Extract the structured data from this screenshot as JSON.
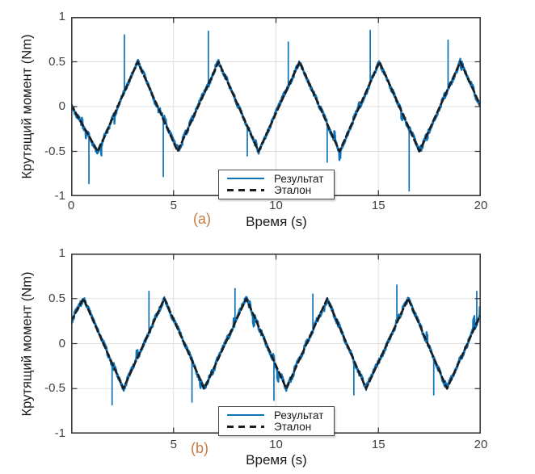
{
  "figure": {
    "background": "#ffffff"
  },
  "colors": {
    "result_line": "#0f73b8",
    "reference_line": "#1c1c1c",
    "grid_line": "#e0e0e0",
    "axis_box": "#3a3a3a",
    "tick_label": "#3f3f3f",
    "axis_label": "#1a1a1a",
    "sublabel": "#c77c42",
    "legend_border": "#4a4a4a",
    "legend_background": "#ffffff"
  },
  "chart_data": [
    {
      "id": "a",
      "type": "line",
      "sublabel": "(a)",
      "xlabel": "Время (s)",
      "ylabel": "Крутящий момент (Nm)",
      "xlim": [
        0,
        20
      ],
      "ylim": [
        -1,
        1
      ],
      "xticks": [
        0,
        5,
        10,
        15,
        20
      ],
      "xtick_labels": [
        "0",
        "5",
        "10",
        "15",
        "20"
      ],
      "yticks": [
        1,
        0.5,
        0,
        -0.5,
        -1
      ],
      "ytick_labels": [
        "1",
        "0.5",
        "0",
        "-0.5",
        "-1"
      ],
      "grid": true,
      "legend": {
        "position": "south-center",
        "entries": [
          {
            "label": "Результат",
            "style": "solid",
            "color": "#0f73b8"
          },
          {
            "label": "Эталон",
            "style": "dashed",
            "color": "#1c1c1c"
          }
        ]
      },
      "series": [
        {
          "name": "Результат",
          "style": "solid",
          "color": "#0f73b8",
          "definition": "reference_plus_noise",
          "noise": {
            "seed": 11,
            "dt": 0.008,
            "uniform": 0.025,
            "step": 0.022,
            "step_period": 0.16,
            "bump_prob": 0.006,
            "bump_max": 0.05
          },
          "spikes": [
            [
              0.87,
              -0.86
            ],
            [
              2.6,
              0.8
            ],
            [
              4.5,
              -0.78
            ],
            [
              6.7,
              0.84
            ],
            [
              8.6,
              -0.55
            ],
            [
              10.6,
              0.72
            ],
            [
              12.5,
              -0.62
            ],
            [
              14.6,
              0.85
            ],
            [
              16.5,
              -0.94
            ],
            [
              18.4,
              0.74
            ]
          ]
        },
        {
          "name": "Эталон",
          "style": "dashed",
          "color": "#1c1c1c",
          "vertices": [
            [
              0,
              0.02
            ],
            [
              1.3,
              -0.5
            ],
            [
              3.25,
              0.5
            ],
            [
              5.2,
              -0.5
            ],
            [
              7.2,
              0.5
            ],
            [
              9.15,
              -0.5
            ],
            [
              11.15,
              0.5
            ],
            [
              13.1,
              -0.5
            ],
            [
              15.05,
              0.5
            ],
            [
              17,
              -0.5
            ],
            [
              19,
              0.5
            ],
            [
              20,
              0
            ]
          ]
        }
      ]
    },
    {
      "id": "b",
      "type": "line",
      "sublabel": "(b)",
      "xlabel": "Время (s)",
      "ylabel": "Крутящий момент (Nm)",
      "xlim": [
        0,
        20
      ],
      "ylim": [
        -1,
        1
      ],
      "xticks": [
        0,
        5,
        10,
        15,
        20
      ],
      "xtick_labels": [
        "",
        "5",
        "10",
        "15",
        "20"
      ],
      "yticks": [
        1,
        0.5,
        0,
        -0.5,
        -1
      ],
      "ytick_labels": [
        "1",
        "0.5",
        "0",
        "-0.5",
        "-1"
      ],
      "grid": true,
      "legend": {
        "position": "south-center",
        "entries": [
          {
            "label": "Результат",
            "style": "solid",
            "color": "#0f73b8"
          },
          {
            "label": "Эталон",
            "style": "dashed",
            "color": "#1c1c1c"
          }
        ]
      },
      "series": [
        {
          "name": "Результат",
          "style": "solid",
          "color": "#0f73b8",
          "definition": "reference_plus_noise",
          "noise": {
            "seed": 23,
            "dt": 0.008,
            "uniform": 0.025,
            "step": 0.022,
            "step_period": 0.16,
            "bump_prob": 0.006,
            "bump_max": 0.05
          },
          "spikes": [
            [
              2,
              -0.68
            ],
            [
              3.8,
              0.58
            ],
            [
              5.9,
              -0.65
            ],
            [
              8,
              0.61
            ],
            [
              9.9,
              -0.63
            ],
            [
              11.8,
              0.55
            ],
            [
              13.8,
              -0.57
            ],
            [
              15.9,
              0.65
            ],
            [
              17.7,
              -0.57
            ],
            [
              19.8,
              0.58
            ]
          ]
        },
        {
          "name": "Эталон",
          "style": "dashed",
          "color": "#1c1c1c",
          "vertices": [
            [
              0,
              0.25
            ],
            [
              0.6,
              0.5
            ],
            [
              2.55,
              -0.5
            ],
            [
              4.55,
              0.5
            ],
            [
              6.5,
              -0.5
            ],
            [
              8.55,
              0.5
            ],
            [
              10.5,
              -0.5
            ],
            [
              12.5,
              0.5
            ],
            [
              14.4,
              -0.5
            ],
            [
              16.45,
              0.5
            ],
            [
              18.35,
              -0.5
            ],
            [
              20,
              0.33
            ]
          ]
        }
      ]
    }
  ]
}
